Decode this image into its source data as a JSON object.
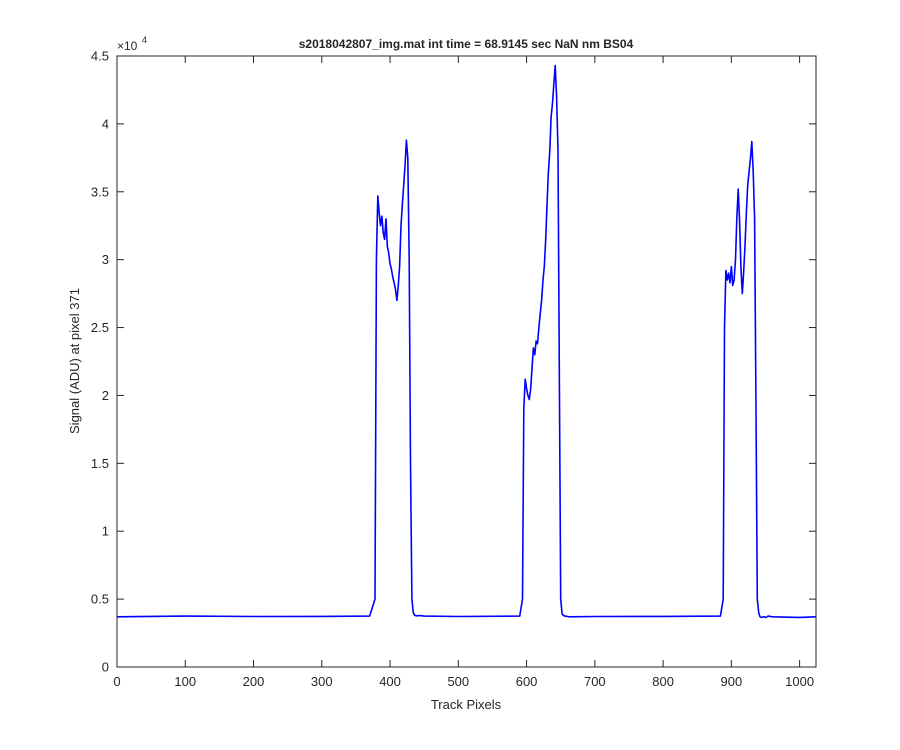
{
  "chart_data": {
    "type": "line",
    "title": "s2018042807_img.mat int time = 68.9145 sec  NaN nm BS04",
    "xlabel": "Track Pixels",
    "ylabel": "Signal (ADU) at pixel 371",
    "y_exponent_label": "×10",
    "y_exponent_power": "4",
    "xlim": [
      0,
      1024
    ],
    "ylim": [
      0,
      45000
    ],
    "xticks": [
      0,
      100,
      200,
      300,
      400,
      500,
      600,
      700,
      800,
      900,
      1000
    ],
    "xtick_labels": [
      "0",
      "100",
      "200",
      "300",
      "400",
      "500",
      "600",
      "700",
      "800",
      "900",
      "1000"
    ],
    "yticks": [
      0,
      5000,
      10000,
      15000,
      20000,
      25000,
      30000,
      35000,
      40000,
      45000
    ],
    "ytick_labels": [
      "0",
      "0.5",
      "1",
      "1.5",
      "2",
      "2.5",
      "3",
      "3.5",
      "4",
      "4.5"
    ],
    "grid": false,
    "line_color": "#0000ff",
    "series": [
      {
        "x": [
          0,
          100,
          200,
          300,
          370,
          378,
          380,
          382,
          384,
          386,
          388,
          390,
          392,
          394,
          396,
          398,
          400,
          402,
          404,
          406,
          408,
          410,
          412,
          414,
          416,
          418,
          420,
          422,
          424,
          426,
          428,
          430,
          432,
          434,
          436,
          438,
          440,
          442,
          450,
          500,
          590,
          594,
          596,
          598,
          600,
          602,
          604,
          606,
          608,
          610,
          612,
          614,
          616,
          618,
          620,
          622,
          624,
          626,
          628,
          630,
          632,
          634,
          636,
          638,
          640,
          642,
          644,
          646,
          648,
          650,
          652,
          654,
          656,
          658,
          662,
          700,
          800,
          884,
          888,
          890,
          892,
          894,
          896,
          898,
          900,
          902,
          904,
          906,
          908,
          910,
          912,
          914,
          916,
          918,
          920,
          922,
          924,
          926,
          928,
          930,
          932,
          934,
          936,
          938,
          940,
          942,
          944,
          946,
          948,
          950,
          952,
          954,
          960,
          1000,
          1024
        ],
        "y": [
          3700,
          3750,
          3720,
          3730,
          3750,
          5000,
          30000,
          34700,
          33500,
          32500,
          33200,
          32000,
          31500,
          33000,
          31000,
          30500,
          29700,
          29300,
          28700,
          28300,
          27800,
          27000,
          28000,
          29500,
          32500,
          34000,
          35500,
          37000,
          38800,
          37500,
          30000,
          15000,
          5000,
          4000,
          3800,
          3780,
          3760,
          3800,
          3750,
          3720,
          3750,
          5000,
          19000,
          21200,
          20500,
          20000,
          19700,
          20500,
          22000,
          23500,
          23000,
          24000,
          23800,
          25000,
          26000,
          27000,
          28500,
          29500,
          31500,
          34000,
          36500,
          38000,
          40500,
          41500,
          43000,
          44300,
          42000,
          38000,
          22000,
          5000,
          3900,
          3800,
          3750,
          3740,
          3700,
          3720,
          3730,
          3750,
          5000,
          25000,
          29200,
          28500,
          29000,
          28300,
          29500,
          28100,
          28500,
          30000,
          33000,
          35200,
          33000,
          29500,
          27500,
          29000,
          31000,
          33500,
          35500,
          36500,
          37500,
          38700,
          36500,
          33000,
          20000,
          5000,
          4000,
          3700,
          3650,
          3680,
          3700,
          3650,
          3700,
          3750,
          3700,
          3650,
          3700
        ]
      }
    ]
  }
}
